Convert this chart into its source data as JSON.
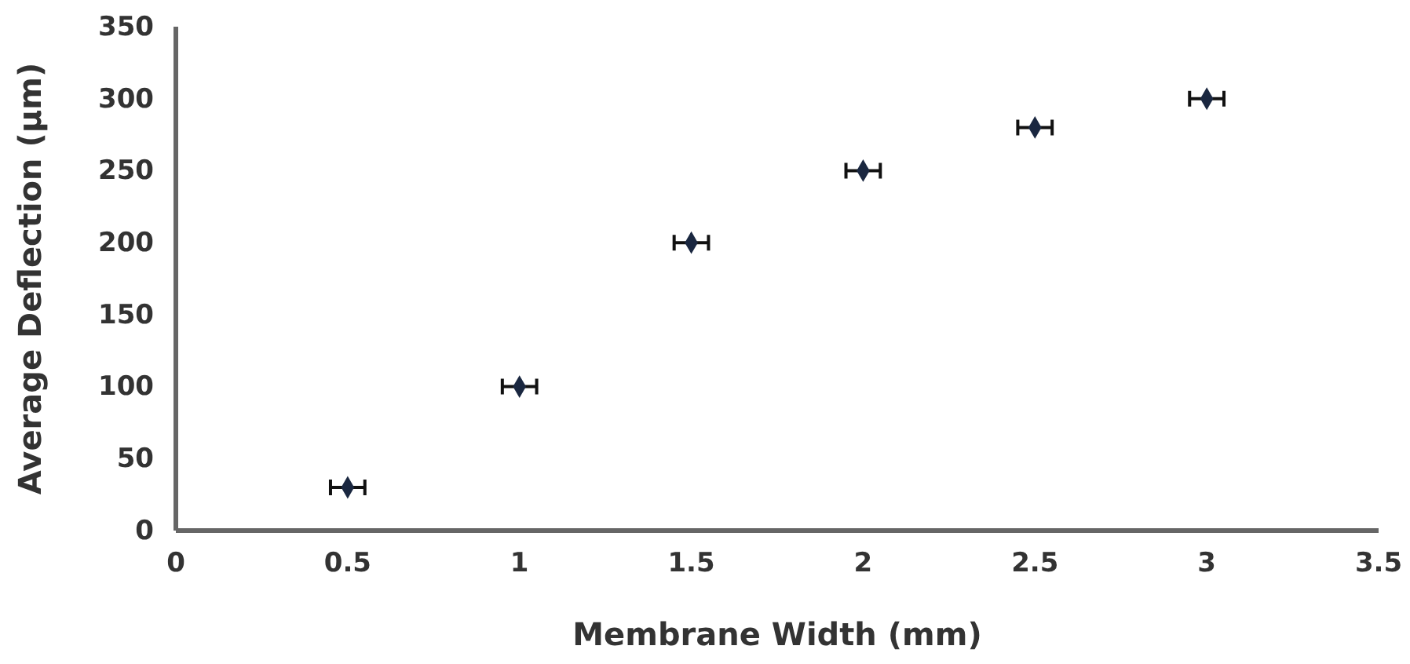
{
  "chart_data": {
    "type": "scatter",
    "xlabel": "Membrane Width (mm)",
    "ylabel": "Average Deflection (µm)",
    "x": [
      0.5,
      1,
      1.5,
      2,
      2.5,
      3
    ],
    "series": [
      {
        "color": "#1a2740",
        "values": [
          30,
          100,
          200,
          250,
          280,
          300
        ],
        "xerrors": [
          0.05,
          0.05,
          0.05,
          0.05,
          0.05,
          0.05
        ]
      }
    ],
    "xlim": [
      0,
      3.5
    ],
    "xticks": [
      0,
      0.5,
      1,
      1.5,
      2,
      2.5,
      3,
      3.5
    ],
    "ylim": [
      0,
      350
    ],
    "yticks": [
      0,
      50,
      100,
      150,
      200,
      250,
      300,
      350
    ],
    "marker": "diamond"
  }
}
